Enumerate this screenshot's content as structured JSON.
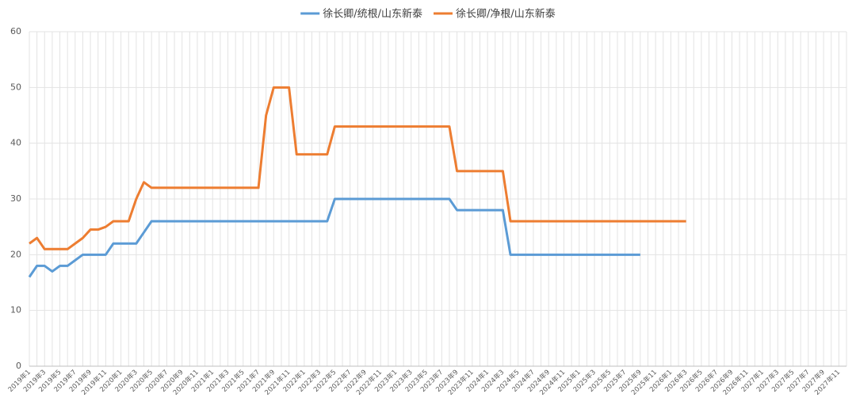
{
  "chart_data": {
    "type": "line",
    "categories": [
      "2019年1",
      null,
      "2019年3",
      null,
      "2019年5",
      null,
      "2019年7",
      null,
      "2019年9",
      null,
      "2019年11",
      null,
      "2020年1",
      null,
      "2020年3",
      null,
      "2020年5",
      null,
      "2020年7",
      null,
      "2020年9",
      null,
      "2020年11",
      null,
      "2021年1",
      null,
      "2021年3",
      null,
      "2021年5",
      null,
      "2021年7",
      null,
      "2021年9",
      null,
      "2021年11",
      null,
      "2022年1",
      null,
      "2022年3",
      null,
      "2022年5",
      null,
      "2022年7",
      null,
      "2022年9",
      null,
      "2022年11",
      null,
      "2023年1",
      null,
      "2023年3",
      null,
      "2023年5",
      null,
      "2023年7",
      null,
      "2023年9",
      null,
      "2023年11",
      null,
      "2024年1",
      null,
      "2024年3",
      null,
      "2024年5",
      null,
      "2024年7",
      null,
      "2024年9",
      null,
      "2024年11",
      null,
      "2025年1",
      null,
      "2025年3",
      null,
      "2025年5",
      null,
      "2025年7",
      null,
      "2025年9",
      null,
      "2025年11",
      null,
      "2026年1",
      null,
      "2026年3",
      null,
      "2026年5",
      null,
      "2026年7",
      null,
      "2026年9",
      null,
      "2026年11",
      null,
      "2027年1",
      null,
      "2027年3",
      null,
      "2027年5",
      null,
      "2027年7",
      null,
      "2027年9",
      null,
      "2027年11",
      null
    ],
    "series": [
      {
        "name": "徐长卿/统根/山东新泰",
        "color": "#5b9bd5",
        "values": [
          16,
          18,
          18,
          17,
          18,
          18,
          19,
          20,
          20,
          20,
          20,
          22,
          22,
          22,
          22,
          24,
          26,
          26,
          26,
          26,
          26,
          26,
          26,
          26,
          26,
          26,
          26,
          26,
          26,
          26,
          26,
          26,
          26,
          26,
          26,
          26,
          26,
          26,
          26,
          26,
          30,
          30,
          30,
          30,
          30,
          30,
          30,
          30,
          30,
          30,
          30,
          30,
          30,
          30,
          30,
          30,
          28,
          28,
          28,
          28,
          28,
          28,
          28,
          20,
          20,
          20,
          20,
          20,
          20,
          20,
          20,
          20,
          20,
          20,
          20,
          20,
          20,
          20,
          20,
          20,
          20,
          null,
          null,
          null,
          null,
          null,
          null,
          null,
          null,
          null,
          null,
          null,
          null,
          null,
          null,
          null,
          null,
          null,
          null,
          null,
          null,
          null,
          null,
          null,
          null,
          null,
          null,
          null
        ]
      },
      {
        "name": "徐长卿/净根/山东新泰",
        "color": "#ed7d31",
        "values": [
          22,
          23,
          21,
          21,
          21,
          21,
          22,
          23,
          24.5,
          24.5,
          25,
          26,
          26,
          26,
          30,
          33,
          32,
          32,
          32,
          32,
          32,
          32,
          32,
          32,
          32,
          32,
          32,
          32,
          32,
          32,
          32,
          45,
          50,
          50,
          50,
          38,
          38,
          38,
          38,
          38,
          43,
          43,
          43,
          43,
          43,
          43,
          43,
          43,
          43,
          43,
          43,
          43,
          43,
          43,
          43,
          43,
          35,
          35,
          35,
          35,
          35,
          35,
          35,
          26,
          26,
          26,
          26,
          26,
          26,
          26,
          26,
          26,
          26,
          26,
          26,
          26,
          26,
          26,
          26,
          26,
          26,
          26,
          26,
          26,
          26,
          26,
          26,
          null,
          null,
          null,
          null,
          null,
          null,
          null,
          null,
          null,
          null,
          null,
          null,
          null,
          null,
          null,
          null,
          null,
          null,
          null,
          null,
          null
        ]
      }
    ],
    "ylim": [
      0,
      60
    ],
    "yticks": [
      0,
      10,
      20,
      30,
      40,
      50,
      60
    ],
    "grid": true,
    "legend": "top"
  }
}
